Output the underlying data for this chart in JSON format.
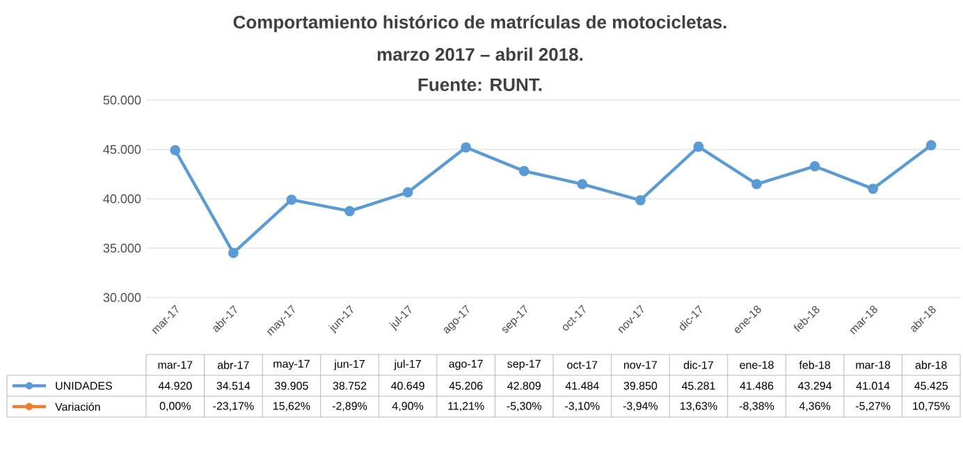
{
  "chart_data": {
    "type": "line",
    "title": "Comportamiento histórico de matrículas de motocicletas.",
    "subtitle": "marzo 2017 – abril 2018.",
    "annotations": [
      "Fuente: RUNT."
    ],
    "categories": [
      "mar-17",
      "abr-17",
      "may-17",
      "jun-17",
      "jul-17",
      "ago-17",
      "sep-17",
      "oct-17",
      "nov-17",
      "dic-17",
      "ene-18",
      "feb-18",
      "mar-18",
      "abr-18"
    ],
    "series": [
      {
        "name": "UNIDADES",
        "color": "#5b9bd5",
        "values": [
          44920,
          34514,
          39905,
          38752,
          40649,
          45206,
          42809,
          41484,
          39850,
          45281,
          41486,
          43294,
          41014,
          45425
        ],
        "value_labels": [
          "44.920",
          "34.514",
          "39.905",
          "38.752",
          "40.649",
          "45.206",
          "42.809",
          "41.484",
          "39.850",
          "45.281",
          "41.486",
          "43.294",
          "41.014",
          "45.425"
        ]
      },
      {
        "name": "Variación",
        "color": "#ed7d31",
        "values": [
          null,
          null,
          null,
          null,
          null,
          null,
          null,
          null,
          null,
          null,
          null,
          null,
          null,
          null
        ],
        "value_labels": [
          "0,00%",
          "-23,17%",
          "15,62%",
          "-2,89%",
          "4,90%",
          "11,21%",
          "-5,30%",
          "-3,10%",
          "-3,94%",
          "13,63%",
          "-8,38%",
          "4,36%",
          "-5,27%",
          "10,75%"
        ]
      }
    ],
    "ylim": [
      30000,
      50000
    ],
    "yticks": [
      {
        "value": 30000,
        "label": "30.000"
      },
      {
        "value": 35000,
        "label": "35.000"
      },
      {
        "value": 40000,
        "label": "40.000"
      },
      {
        "value": 45000,
        "label": "45.000"
      },
      {
        "value": 50000,
        "label": "50.000"
      }
    ],
    "grid": "y",
    "legend": "bottom",
    "marker": "circle",
    "line_style": "solid"
  }
}
